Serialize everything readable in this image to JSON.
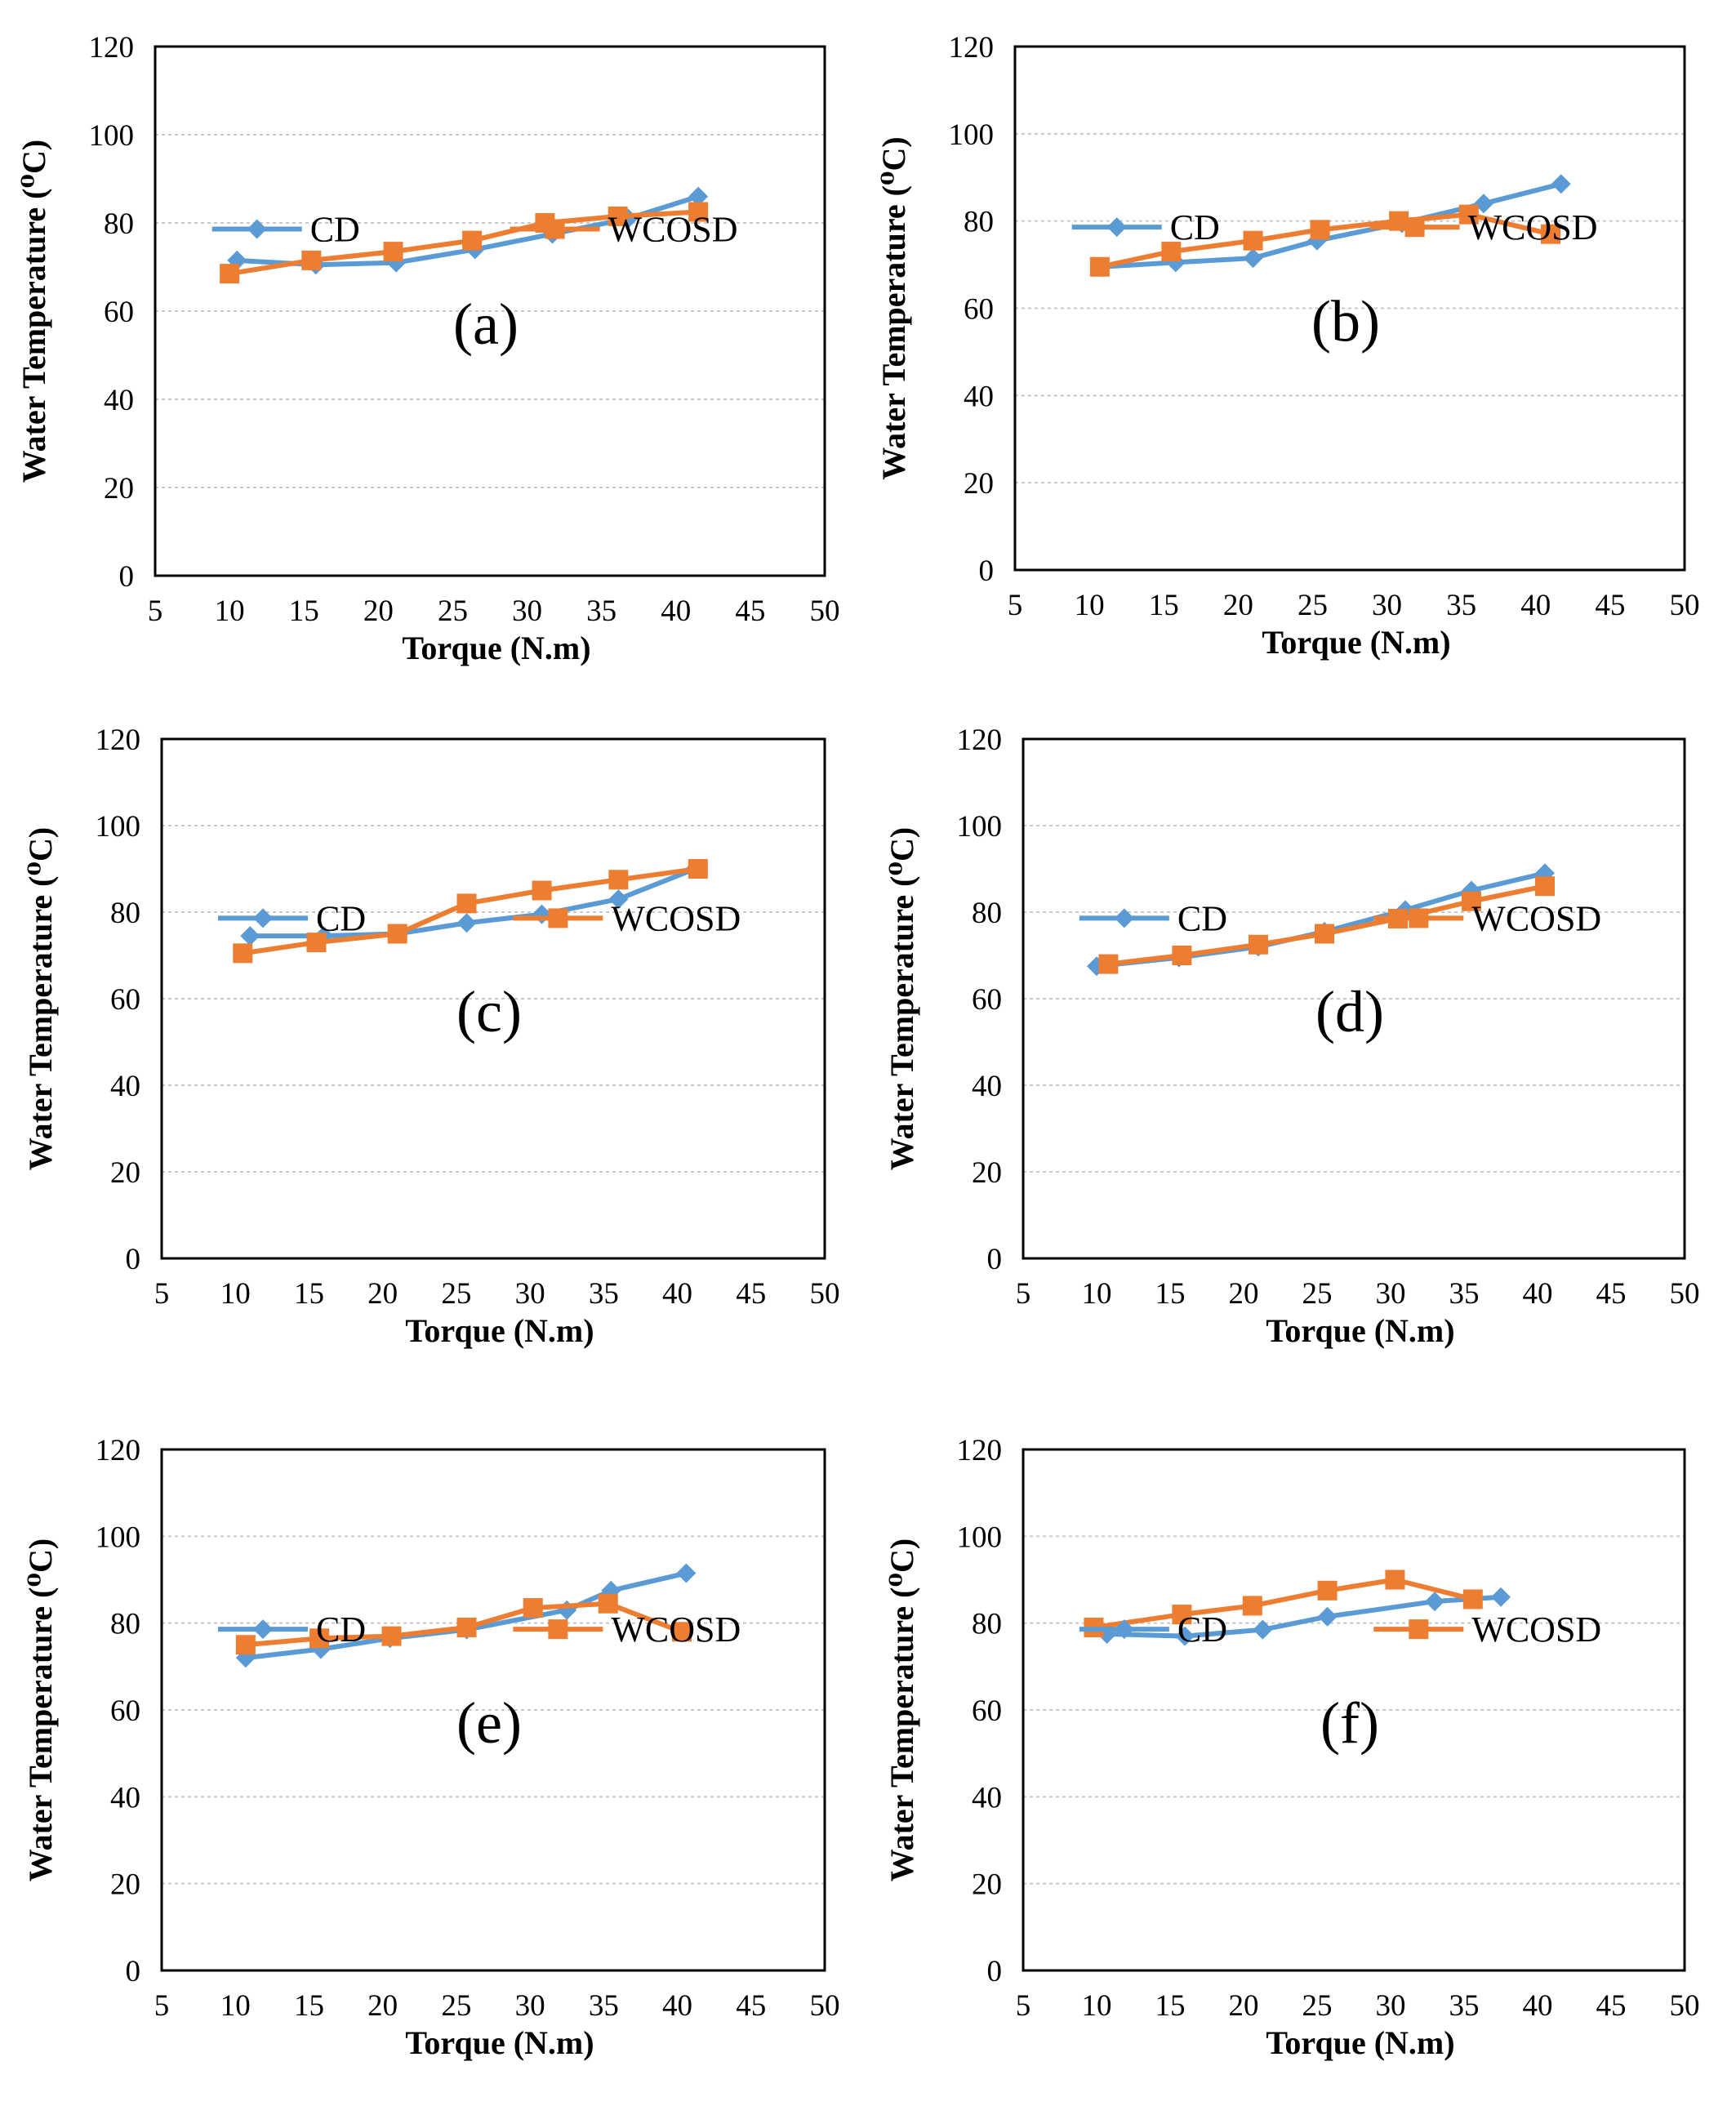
{
  "colors": {
    "CD": "#5B9BD5",
    "WCOSD": "#ED7D31",
    "grid": "#c8c8c8",
    "axis": "#000000"
  },
  "chart_data": [
    {
      "type": "line",
      "panel": "(a)",
      "xlabel": "Torque (N.m)",
      "ylabel": "Water Temperature (⁰C)",
      "xlim": [
        5,
        50
      ],
      "ylim": [
        0,
        120
      ],
      "xticks": [
        5,
        10,
        15,
        20,
        25,
        30,
        35,
        40,
        45,
        50
      ],
      "yticks": [
        0,
        20,
        40,
        60,
        80,
        100,
        120
      ],
      "legend": "upper-middle",
      "series": [
        {
          "name": "CD",
          "x": [
            10.5,
            15.8,
            21.2,
            26.5,
            31.7,
            36.8,
            41.5
          ],
          "y": [
            71.5,
            70.5,
            71,
            74,
            77.5,
            81,
            86
          ]
        },
        {
          "name": "WCOSD",
          "x": [
            10,
            15.5,
            21,
            26.3,
            31.2,
            36.1,
            41.5
          ],
          "y": [
            68.5,
            71.5,
            73.5,
            76,
            80,
            81.5,
            82.5
          ]
        }
      ]
    },
    {
      "type": "line",
      "panel": "(b)",
      "xlabel": "Torque (N.m)",
      "ylabel": "Water Temperature (⁰C)",
      "xlim": [
        5,
        50
      ],
      "ylim": [
        0,
        120
      ],
      "xticks": [
        5,
        10,
        15,
        20,
        25,
        30,
        35,
        40,
        45,
        50
      ],
      "yticks": [
        0,
        20,
        40,
        60,
        80,
        100,
        120
      ],
      "legend": "upper-middle",
      "series": [
        {
          "name": "CD",
          "x": [
            10.8,
            15.8,
            21,
            25.3,
            31,
            36.5,
            41.7
          ],
          "y": [
            69.5,
            70.5,
            71.5,
            75.5,
            79.5,
            84,
            88.5
          ]
        },
        {
          "name": "WCOSD",
          "x": [
            10.7,
            15.5,
            21,
            25.5,
            30.8,
            35.5,
            41
          ],
          "y": [
            69.5,
            73,
            75.5,
            78,
            80,
            81.5,
            77
          ]
        }
      ]
    },
    {
      "type": "line",
      "panel": "(c)",
      "xlabel": "Torque (N.m)",
      "ylabel": "Water Temperature (⁰C)",
      "xlim": [
        5,
        50
      ],
      "ylim": [
        0,
        120
      ],
      "xticks": [
        5,
        10,
        15,
        20,
        25,
        30,
        35,
        40,
        45,
        50
      ],
      "yticks": [
        0,
        20,
        40,
        60,
        80,
        100,
        120
      ],
      "legend": "upper-middle",
      "series": [
        {
          "name": "CD",
          "x": [
            11,
            16,
            21,
            25.7,
            30.8,
            36,
            41.2
          ],
          "y": [
            74.5,
            74.5,
            75,
            77.5,
            79.5,
            83,
            90
          ]
        },
        {
          "name": "WCOSD",
          "x": [
            10.5,
            15.5,
            21,
            25.7,
            30.8,
            36,
            41.4
          ],
          "y": [
            70.5,
            73,
            75,
            82,
            85,
            87.5,
            90
          ]
        }
      ]
    },
    {
      "type": "line",
      "panel": "(d)",
      "xlabel": "Torque (N.m)",
      "ylabel": "Water Temperature (⁰C)",
      "xlim": [
        5,
        50
      ],
      "ylim": [
        0,
        120
      ],
      "xticks": [
        5,
        10,
        15,
        20,
        25,
        30,
        35,
        40,
        45,
        50
      ],
      "yticks": [
        0,
        20,
        40,
        60,
        80,
        100,
        120
      ],
      "legend": "upper-middle",
      "series": [
        {
          "name": "CD",
          "x": [
            10,
            15.6,
            21,
            25.5,
            31,
            35.5,
            40.5
          ],
          "y": [
            67.5,
            69.5,
            72,
            75.5,
            80.5,
            85,
            89
          ]
        },
        {
          "name": "WCOSD",
          "x": [
            10.8,
            15.8,
            21,
            25.5,
            30.5,
            35.5,
            40.5
          ],
          "y": [
            68,
            70,
            72.5,
            75,
            78.5,
            82.5,
            86
          ]
        }
      ]
    },
    {
      "type": "line",
      "panel": "(e)",
      "xlabel": "Torque (N.m)",
      "ylabel": "Water Temperature (⁰C)",
      "xlim": [
        5,
        50
      ],
      "ylim": [
        0,
        120
      ],
      "xticks": [
        5,
        10,
        15,
        20,
        25,
        30,
        35,
        40,
        45,
        50
      ],
      "yticks": [
        0,
        20,
        40,
        60,
        80,
        100,
        120
      ],
      "legend": "upper-middle",
      "series": [
        {
          "name": "CD",
          "x": [
            10.7,
            15.8,
            20.5,
            25.7,
            32.5,
            35.5,
            40.6
          ],
          "y": [
            72,
            74,
            76.5,
            78.5,
            83,
            87.5,
            91.5
          ]
        },
        {
          "name": "WCOSD",
          "x": [
            10.7,
            15.7,
            20.6,
            25.7,
            30.2,
            35.3,
            40.3
          ],
          "y": [
            75,
            76.5,
            77,
            79,
            83.5,
            84.5,
            78
          ]
        }
      ]
    },
    {
      "type": "line",
      "panel": "(f)",
      "xlabel": "Torque (N.m)",
      "ylabel": "Water Temperature (⁰C)",
      "xlim": [
        5,
        50
      ],
      "ylim": [
        0,
        120
      ],
      "xticks": [
        5,
        10,
        15,
        20,
        25,
        30,
        35,
        40,
        45,
        50
      ],
      "yticks": [
        0,
        20,
        40,
        60,
        80,
        100,
        120
      ],
      "legend": "upper-middle",
      "series": [
        {
          "name": "CD",
          "x": [
            10.7,
            16,
            21.3,
            25.7,
            33,
            37.5
          ],
          "y": [
            77.5,
            77,
            78.5,
            81.5,
            85,
            86
          ]
        },
        {
          "name": "WCOSD",
          "x": [
            9.8,
            15.8,
            20.6,
            25.7,
            30.3,
            35.6
          ],
          "y": [
            79,
            82,
            84,
            87.5,
            90,
            85.5
          ]
        }
      ]
    }
  ]
}
